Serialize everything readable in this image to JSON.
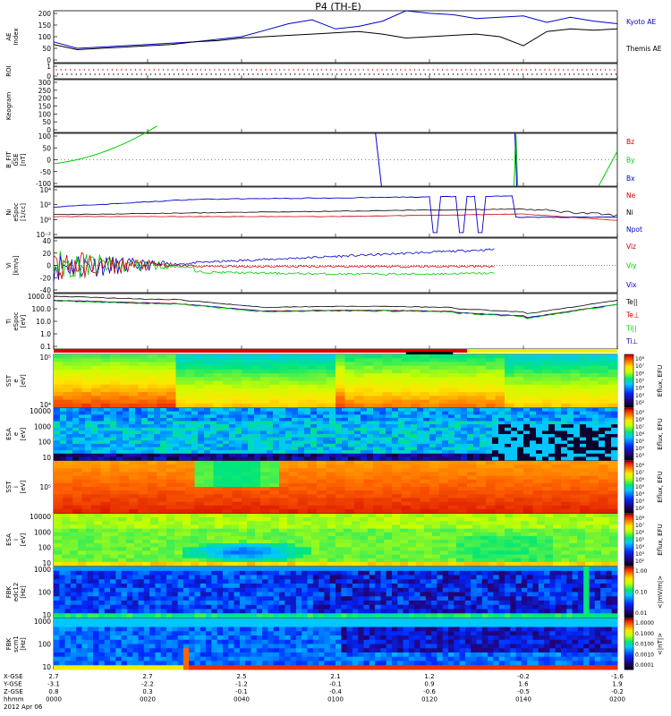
{
  "title": "P4 (TH-E)",
  "footer": {
    "row_labels": [
      "X-GSE",
      "Y-GSE",
      "Z-GSE",
      "hhmm",
      "2012 Apr 06"
    ],
    "columns": [
      {
        "x": "2.7",
        "y": "-3.1",
        "z": "0.8",
        "t": "0000"
      },
      {
        "x": "2.7",
        "y": "-2.2",
        "z": "0.3",
        "t": "0020"
      },
      {
        "x": "2.5",
        "y": "-1.2",
        "z": "-0.1",
        "t": "0040"
      },
      {
        "x": "2.1",
        "y": "-0.1",
        "z": "-0.4",
        "t": "0100"
      },
      {
        "x": "1.2",
        "y": "0.9",
        "z": "-0.6",
        "t": "0120"
      },
      {
        "x": "-0.2",
        "y": "1.6",
        "z": "-0.5",
        "t": "0140"
      },
      {
        "x": "-1.6",
        "y": "1.9",
        "z": "-0.2",
        "t": "0200"
      }
    ]
  },
  "chart_data": [
    {
      "type": "line",
      "panel": "ae",
      "ylabel": "AE Index",
      "ylim": [
        0,
        200
      ],
      "yticks": [
        "200",
        "150",
        "100",
        "50",
        "0"
      ],
      "x_minutes": [
        0,
        5,
        10,
        15,
        20,
        25,
        30,
        35,
        40,
        45,
        50,
        55,
        60,
        65,
        70,
        75,
        80,
        85,
        90,
        95,
        100,
        105,
        110,
        115,
        120
      ],
      "series": [
        {
          "name": "Kyoto AE",
          "color": "#0000cc",
          "values": [
            80,
            55,
            60,
            65,
            70,
            75,
            80,
            90,
            100,
            125,
            150,
            165,
            130,
            140,
            160,
            200,
            190,
            185,
            170,
            175,
            180,
            155,
            175,
            160,
            150
          ]
        },
        {
          "name": "Themis AE",
          "color": "#000000",
          "values": [
            70,
            50,
            55,
            60,
            65,
            70,
            80,
            85,
            95,
            100,
            105,
            110,
            115,
            120,
            110,
            95,
            100,
            105,
            110,
            100,
            65,
            120,
            130,
            125,
            130
          ]
        }
      ]
    },
    {
      "type": "scatter",
      "panel": "roi",
      "ylabel": "ROI",
      "ylim": [
        0,
        1
      ],
      "yticks": [
        "1",
        "0"
      ]
    },
    {
      "type": "line",
      "panel": "keogram",
      "ylabel": "Keogram",
      "ylim": [
        0,
        300
      ],
      "yticks": [
        "300",
        "250",
        "200",
        "150",
        "100",
        "50",
        "0"
      ]
    },
    {
      "type": "line",
      "panel": "bfit",
      "ylabel": "B_FIT GSE [nT]",
      "ylim": [
        -100,
        100
      ],
      "yticks": [
        "100",
        "50",
        "0",
        "-50",
        "-100"
      ],
      "series": [
        {
          "name": "Bz",
          "color": "#cc0000"
        },
        {
          "name": "By",
          "color": "#00cc00"
        },
        {
          "name": "Bx",
          "color": "#0000cc"
        }
      ]
    },
    {
      "type": "line",
      "panel": "density",
      "ylabel": "Ni eSpoc [1/cc]",
      "ylim": [
        -2,
        5
      ],
      "yticks": [
        "10⁴",
        "10²",
        "10⁰",
        "10⁻²"
      ],
      "series": [
        {
          "name": "Ne",
          "color": "#cc0000"
        },
        {
          "name": "Ni",
          "color": "#000000"
        },
        {
          "name": "Npot",
          "color": "#0000cc"
        }
      ]
    },
    {
      "type": "line",
      "panel": "velocity",
      "ylabel": "Vi [km/s]",
      "ylim": [
        -50,
        50
      ],
      "yticks": [
        "40",
        "20",
        "0",
        "-20",
        "-40"
      ],
      "series": [
        {
          "name": "Viz",
          "color": "#cc0000"
        },
        {
          "name": "Viy",
          "color": "#00cc00"
        },
        {
          "name": "Vix",
          "color": "#0000cc"
        }
      ]
    },
    {
      "type": "line",
      "panel": "temperature",
      "ylabel": "Ti eSpoc [eV]",
      "ylim": [
        -1,
        3.3
      ],
      "yticks": [
        "1000.0",
        "100.0",
        "10.0",
        "1.0",
        "0.1"
      ],
      "series": [
        {
          "name": "Te||",
          "color": "#000000"
        },
        {
          "name": "Te⊥",
          "color": "#cc0000"
        },
        {
          "name": "Ti||",
          "color": "#00cc00"
        },
        {
          "name": "Ti⊥",
          "color": "#0000cc"
        }
      ]
    },
    {
      "type": "heatmap",
      "panel": "sst_e",
      "ylabel": "SST e [eV]",
      "yticks": [
        "10⁵",
        "10⁴"
      ],
      "cbar_label": "Eflux, EFU",
      "cbar_ticks": [
        "10⁸",
        "10⁷",
        "10⁶",
        "10⁵",
        "10⁴",
        "10³",
        "10²"
      ]
    },
    {
      "type": "heatmap",
      "panel": "esa_e",
      "ylabel": "ESA e [eV]",
      "yticks": [
        "10000",
        "1000",
        "100",
        "10"
      ],
      "cbar_label": "Eflux, EFU",
      "cbar_ticks": [
        "10⁹",
        "10⁸",
        "10⁷",
        "10⁶",
        "10⁵",
        "10⁴",
        "10³"
      ]
    },
    {
      "type": "heatmap",
      "panel": "sst_i",
      "ylabel": "SST i [eV]",
      "yticks": [
        "10⁵"
      ],
      "cbar_label": "Eflux, EFU",
      "cbar_ticks": [
        "10⁸",
        "10⁷",
        "10⁶",
        "10⁵",
        "10⁴",
        "10³",
        "10²"
      ]
    },
    {
      "type": "heatmap",
      "panel": "esa_i",
      "ylabel": "ESA i [eV]",
      "yticks": [
        "10000",
        "1000",
        "100",
        "10"
      ],
      "cbar_label": "Eflux, EFU",
      "cbar_ticks": [
        "10⁸",
        "10⁷",
        "10⁶",
        "10⁵",
        "10⁴",
        "10³",
        "10²"
      ]
    },
    {
      "type": "heatmap",
      "panel": "fbk_e",
      "ylabel": "FBK edc12 [Hz]",
      "yticks": [
        "1000",
        "100",
        "10"
      ],
      "cbar_label": "<|mV/m|>",
      "cbar_ticks": [
        "1.00",
        "0.10",
        "0.01"
      ]
    },
    {
      "type": "heatmap",
      "panel": "fbk_b",
      "ylabel": "FBK scm1 [Hz]",
      "yticks": [
        "1000",
        "100",
        "10"
      ],
      "cbar_label": "<|nT|>",
      "cbar_ticks": [
        "1.0000",
        "0.1000",
        "0.0100",
        "0.0010",
        "0.0001"
      ]
    }
  ]
}
